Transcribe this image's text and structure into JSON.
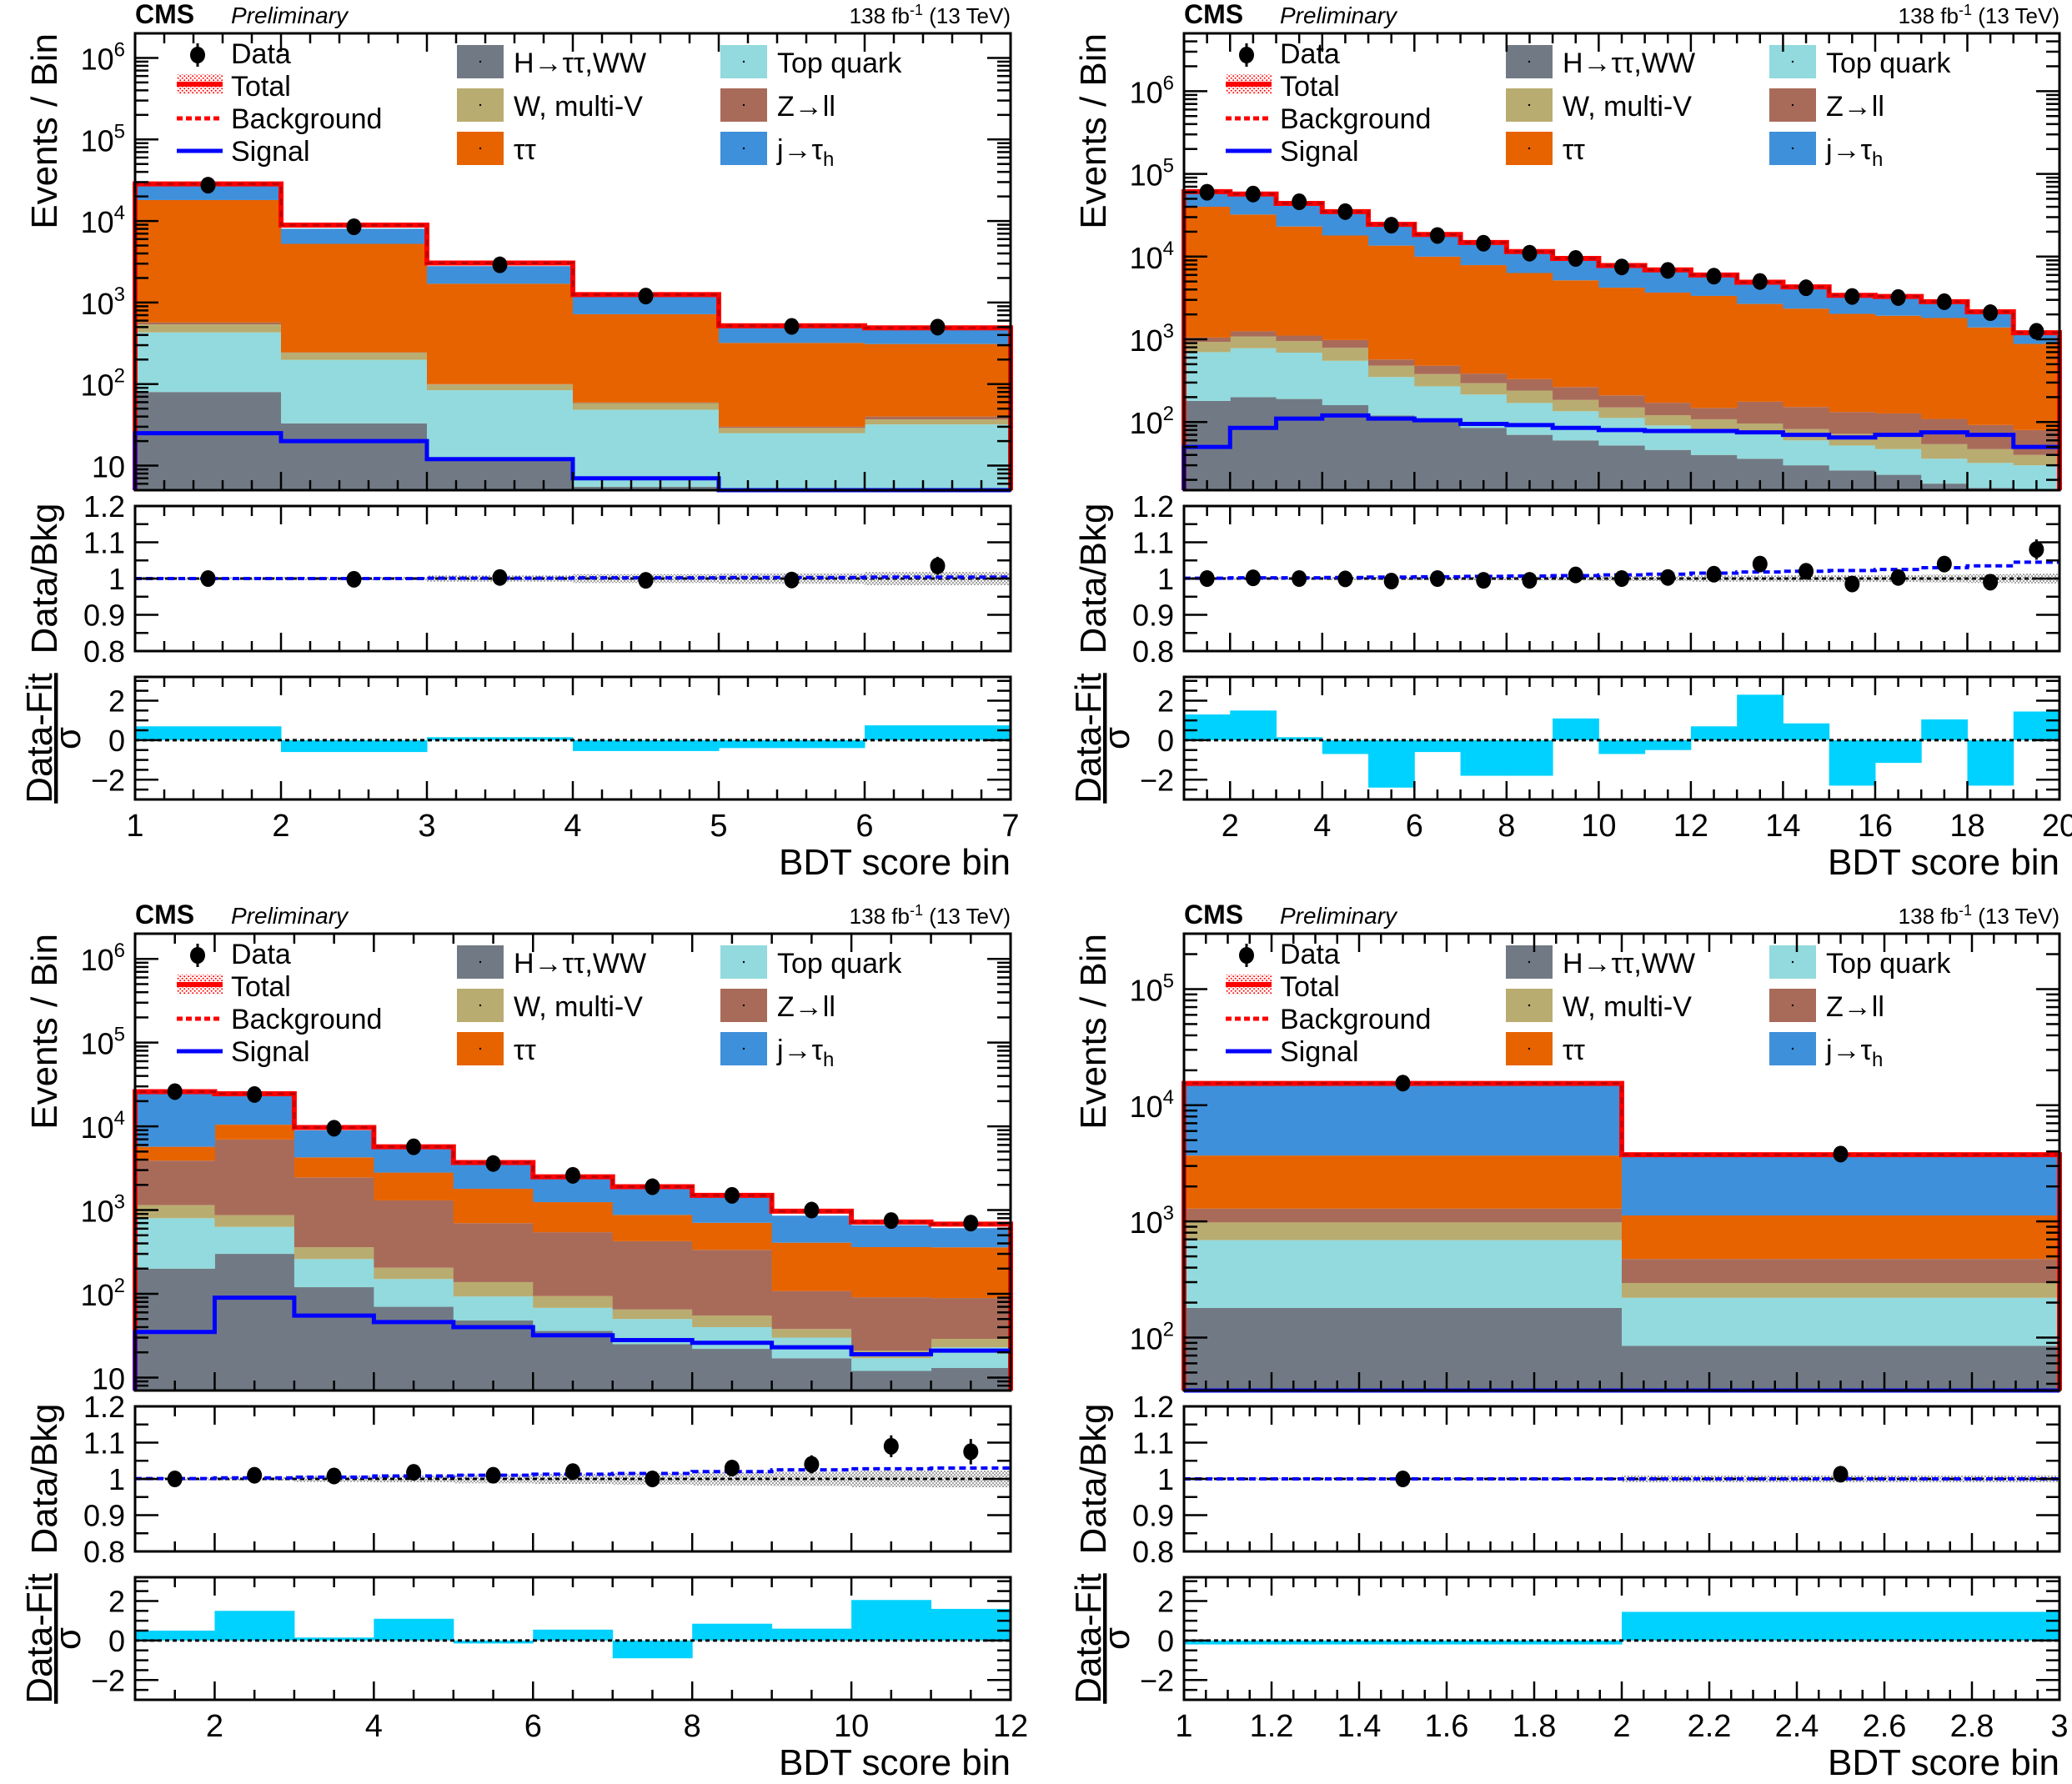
{
  "header": {
    "experiment": "CMS",
    "status": "Preliminary",
    "lumi_prefix": "138 fb",
    "lumi_sup": "-1",
    "lumi_suffix": " (13 TeV)"
  },
  "legend": {
    "data": "Data",
    "total": "Total",
    "background": "Background",
    "signal": "Signal",
    "processes": [
      {
        "key": "htt",
        "label": "H→ττ,WW",
        "color": "#717a84"
      },
      {
        "key": "top",
        "label": "Top quark",
        "color": "#92dadd"
      },
      {
        "key": "wv",
        "label": "W, multi-V",
        "color": "#b9ac70"
      },
      {
        "key": "zll",
        "label": "Z→ll",
        "color": "#a96b59"
      },
      {
        "key": "tt",
        "label": "ττ",
        "color": "#e76300"
      },
      {
        "key": "fake",
        "label": "j→τh",
        "color": "#3f90da"
      }
    ]
  },
  "colors": {
    "total_line": "#ff0000",
    "signal_line": "#0000ff",
    "pull_fill": "#00d2ff",
    "ratio_sig_line": "#0000ff",
    "data": "#000000"
  },
  "labels": {
    "y_main": "Events / Bin",
    "y_ratio": "Data/Bkg",
    "y_pull_num": "Data-Fit",
    "y_pull_den": "σ",
    "x": "BDT score bin"
  },
  "chart_data": [
    {
      "type": "bar",
      "name": "panel-top-left",
      "stacked": true,
      "ylog": true,
      "ylim": [
        5,
        2000000
      ],
      "xlim": [
        1,
        7
      ],
      "x_edges": [
        1,
        2,
        3,
        4,
        5,
        6,
        7
      ],
      "xticks": [
        "1",
        "2",
        "3",
        "4",
        "5",
        "6",
        "7"
      ],
      "series": [
        {
          "name": "H→ττ,WW",
          "values": [
            80,
            33,
            12,
            5.5,
            5,
            5
          ]
        },
        {
          "name": "Top quark",
          "values": [
            350,
            165,
            72,
            43,
            20,
            27
          ]
        },
        {
          "name": "W, multi-V",
          "values": [
            110,
            45,
            15,
            10,
            4,
            5
          ]
        },
        {
          "name": "Z→ll",
          "values": [
            30,
            2,
            1,
            1,
            1,
            3
          ]
        },
        {
          "name": "ττ",
          "values": [
            17500,
            5000,
            1600,
            660,
            290,
            270
          ]
        },
        {
          "name": "j→τh",
          "values": [
            9000,
            2800,
            1100,
            480,
            190,
            175
          ]
        }
      ],
      "data": [
        27500,
        8500,
        2900,
        1200,
        510,
        500
      ],
      "total": [
        28500,
        8900,
        3050,
        1250,
        520,
        490
      ],
      "signal": [
        25,
        20,
        12,
        7,
        5,
        5
      ],
      "ratio": {
        "ylim": [
          0.8,
          1.2
        ],
        "yticks": [
          "0.8",
          "0.9",
          "1",
          "1.1",
          "1.2"
        ],
        "data": [
          1.0,
          0.998,
          1.003,
          0.995,
          0.996,
          1.035
        ],
        "err": [
          0.006,
          0.007,
          0.008,
          0.013,
          0.022,
          0.025
        ],
        "signal_plus_bkg": [
          1.0,
          1.0,
          1.001,
          1.002,
          1.003,
          1.004
        ],
        "band": [
          0.003,
          0.004,
          0.008,
          0.012,
          0.015,
          0.018
        ]
      },
      "pull": {
        "ylim": [
          -3,
          3.2
        ],
        "yticks": [
          "−2",
          "0",
          "2"
        ],
        "values": [
          0.7,
          -0.6,
          0.15,
          -0.55,
          -0.4,
          0.75
        ]
      }
    },
    {
      "type": "bar",
      "name": "panel-top-right",
      "stacked": true,
      "ylog": true,
      "ylim": [
        15,
        5000000
      ],
      "xlim": [
        1,
        20
      ],
      "x_edges": [
        1,
        2,
        3,
        4,
        5,
        6,
        7,
        8,
        9,
        10,
        11,
        12,
        13,
        14,
        15,
        16,
        17,
        18,
        19,
        20
      ],
      "xticks": [
        "2",
        "4",
        "6",
        "8",
        "10",
        "12",
        "14",
        "16",
        "18",
        "20"
      ],
      "series": [
        {
          "name": "H→ττ,WW",
          "values": [
            180,
            200,
            190,
            160,
            120,
            100,
            85,
            70,
            60,
            52,
            46,
            40,
            36,
            30,
            26,
            23,
            18,
            16,
            15
          ]
        },
        {
          "name": "Top quark",
          "values": [
            520,
            580,
            500,
            390,
            230,
            170,
            130,
            100,
            75,
            60,
            45,
            40,
            35,
            30,
            26,
            24,
            18,
            16,
            15
          ]
        },
        {
          "name": "W, multi-V",
          "values": [
            230,
            300,
            260,
            240,
            130,
            110,
            80,
            70,
            50,
            38,
            30,
            28,
            25,
            22,
            20,
            20,
            18,
            15,
            10
          ]
        },
        {
          "name": "Z→ll",
          "values": [
            120,
            170,
            160,
            190,
            90,
            100,
            90,
            90,
            80,
            60,
            50,
            40,
            80,
            70,
            60,
            60,
            55,
            45,
            40
          ]
        },
        {
          "name": "ττ",
          "values": [
            39000,
            31000,
            22000,
            17000,
            13000,
            9500,
            7500,
            6000,
            4900,
            4000,
            3500,
            3200,
            2500,
            2200,
            1900,
            1800,
            1700,
            1300,
            800
          ]
        },
        {
          "name": "j→τh",
          "values": [
            18000,
            22000,
            20000,
            15000,
            10500,
            8500,
            7000,
            5500,
            4300,
            3500,
            3000,
            2700,
            2300,
            1900,
            1500,
            1400,
            1200,
            900,
            350
          ]
        },
        {
          "name": "signal",
          "values": [
            50,
            85,
            110,
            120,
            110,
            105,
            95,
            92,
            85,
            80,
            78,
            78,
            75,
            70,
            65,
            70,
            75,
            70,
            50
          ]
        }
      ],
      "data": [
        60000,
        57000,
        46000,
        35000,
        24000,
        18000,
        14500,
        11000,
        9500,
        7500,
        6800,
        5800,
        5000,
        4200,
        3300,
        3200,
        2850,
        2100,
        1250
      ],
      "total": [
        61000,
        57000,
        44000,
        35000,
        24500,
        18500,
        14800,
        11500,
        9500,
        7800,
        6900,
        6000,
        4900,
        4300,
        3400,
        3300,
        2850,
        2150,
        1200
      ],
      "ratio": {
        "ylim": [
          0.8,
          1.2
        ],
        "yticks": [
          "0.8",
          "0.9",
          "1",
          "1.1",
          "1.2"
        ],
        "data": [
          1.0,
          1.002,
          1.0,
          0.999,
          0.993,
          1.0,
          0.995,
          0.995,
          1.01,
          1.0,
          1.003,
          1.012,
          1.04,
          1.02,
          0.985,
          1.003,
          1.04,
          0.99,
          1.08
        ],
        "err": [
          0.004,
          0.004,
          0.005,
          0.005,
          0.006,
          0.007,
          0.008,
          0.009,
          0.01,
          0.011,
          0.012,
          0.013,
          0.014,
          0.015,
          0.017,
          0.018,
          0.019,
          0.022,
          0.028
        ],
        "signal_plus_bkg": [
          1.001,
          1.002,
          1.002,
          1.003,
          1.004,
          1.005,
          1.006,
          1.007,
          1.008,
          1.01,
          1.012,
          1.015,
          1.018,
          1.02,
          1.022,
          1.025,
          1.03,
          1.035,
          1.045
        ],
        "band": [
          0.003,
          0.003,
          0.003,
          0.004,
          0.004,
          0.005,
          0.005,
          0.006,
          0.006,
          0.007,
          0.007,
          0.008,
          0.008,
          0.009,
          0.01,
          0.01,
          0.011,
          0.012,
          0.013
        ]
      },
      "pull": {
        "ylim": [
          -3,
          3.2
        ],
        "yticks": [
          "−2",
          "0",
          "2"
        ],
        "values": [
          1.3,
          1.5,
          0.15,
          -0.7,
          -2.4,
          -0.6,
          -1.8,
          -1.8,
          1.1,
          -0.7,
          -0.5,
          0.7,
          2.3,
          0.85,
          -2.3,
          -1.15,
          1.05,
          -2.3,
          1.45
        ]
      }
    },
    {
      "type": "bar",
      "name": "panel-bottom-left",
      "stacked": true,
      "ylog": true,
      "ylim": [
        7,
        2000000
      ],
      "xlim": [
        1,
        12
      ],
      "x_edges": [
        1,
        2,
        3,
        4,
        5,
        6,
        7,
        8,
        9,
        10,
        11,
        12
      ],
      "xticks": [
        "2",
        "4",
        "6",
        "8",
        "10",
        "12"
      ],
      "series": [
        {
          "name": "H→ττ,WW",
          "values": [
            200,
            300,
            120,
            70,
            48,
            36,
            25,
            22,
            17,
            12,
            13
          ]
        },
        {
          "name": "Top quark",
          "values": [
            600,
            330,
            140,
            80,
            45,
            32,
            25,
            18,
            13,
            5,
            10
          ]
        },
        {
          "name": "W, multi-V",
          "values": [
            350,
            240,
            100,
            55,
            45,
            26,
            15,
            15,
            8,
            4,
            6
          ]
        },
        {
          "name": "Z→ll",
          "values": [
            2750,
            6100,
            2100,
            1100,
            560,
            450,
            360,
            280,
            70,
            70,
            60
          ]
        },
        {
          "name": "ττ",
          "values": [
            1800,
            3500,
            1800,
            1500,
            1100,
            700,
            450,
            370,
            300,
            270,
            270
          ]
        },
        {
          "name": "j→τh",
          "values": [
            19000,
            13000,
            4700,
            3000,
            1900,
            1200,
            900,
            800,
            450,
            300,
            250
          ]
        }
      ],
      "data": [
        26000,
        24000,
        9500,
        5700,
        3600,
        2600,
        1900,
        1500,
        1000,
        750,
        700
      ],
      "total": [
        26000,
        24500,
        9700,
        5700,
        3700,
        2500,
        1900,
        1500,
        970,
        720,
        680
      ],
      "signal": [
        35,
        90,
        55,
        46,
        40,
        32,
        28,
        26,
        23,
        19,
        21
      ],
      "ratio": {
        "ylim": [
          0.8,
          1.2
        ],
        "yticks": [
          "0.8",
          "0.9",
          "1",
          "1.1",
          "1.2"
        ],
        "data": [
          1.0,
          1.01,
          1.008,
          1.018,
          1.01,
          1.02,
          1.0,
          1.03,
          1.04,
          1.09,
          1.075
        ],
        "err": [
          0.006,
          0.007,
          0.01,
          0.013,
          0.014,
          0.016,
          0.018,
          0.02,
          0.025,
          0.03,
          0.035
        ],
        "signal_plus_bkg": [
          1.001,
          1.003,
          1.005,
          1.008,
          1.01,
          1.013,
          1.015,
          1.02,
          1.025,
          1.028,
          1.03
        ],
        "band": [
          0.004,
          0.005,
          0.008,
          0.01,
          0.012,
          0.014,
          0.016,
          0.018,
          0.02,
          0.022,
          0.024
        ]
      },
      "pull": {
        "ylim": [
          -3,
          3.2
        ],
        "yticks": [
          "−2",
          "0",
          "2"
        ],
        "values": [
          0.5,
          1.5,
          0.15,
          1.1,
          -0.15,
          0.55,
          -0.9,
          0.85,
          0.6,
          2.05,
          1.6
        ]
      }
    },
    {
      "type": "bar",
      "name": "panel-bottom-right",
      "stacked": true,
      "ylog": true,
      "ylim": [
        35,
        300000
      ],
      "xlim": [
        1,
        3
      ],
      "x_edges": [
        1,
        2,
        3
      ],
      "xticks": [
        "1",
        "1.2",
        "1.4",
        "1.6",
        "1.8",
        "2",
        "2.2",
        "2.4",
        "2.6",
        "2.8",
        "3"
      ],
      "series": [
        {
          "name": "H→ττ,WW",
          "values": [
            180,
            85
          ]
        },
        {
          "name": "Top quark",
          "values": [
            510,
            135
          ]
        },
        {
          "name": "W, multi-V",
          "values": [
            290,
            75
          ]
        },
        {
          "name": "Z→ll",
          "values": [
            310,
            180
          ]
        },
        {
          "name": "ττ",
          "values": [
            2400,
            650
          ]
        },
        {
          "name": "j→τh",
          "values": [
            11500,
            2700
          ]
        }
      ],
      "data": [
        15500,
        3800
      ],
      "total": [
        15400,
        3750
      ],
      "signal": [
        35,
        35
      ],
      "ratio": {
        "ylim": [
          0.8,
          1.2
        ],
        "yticks": [
          "0.8",
          "0.9",
          "1",
          "1.1",
          "1.2"
        ],
        "data": [
          1.0,
          1.013
        ],
        "err": [
          0.008,
          0.016
        ],
        "signal_plus_bkg": [
          1.0,
          1.0
        ],
        "band": [
          0.003,
          0.01
        ]
      },
      "pull": {
        "ylim": [
          -3,
          3.2
        ],
        "yticks": [
          "−2",
          "0",
          "2"
        ],
        "values": [
          -0.2,
          1.45
        ]
      }
    }
  ]
}
